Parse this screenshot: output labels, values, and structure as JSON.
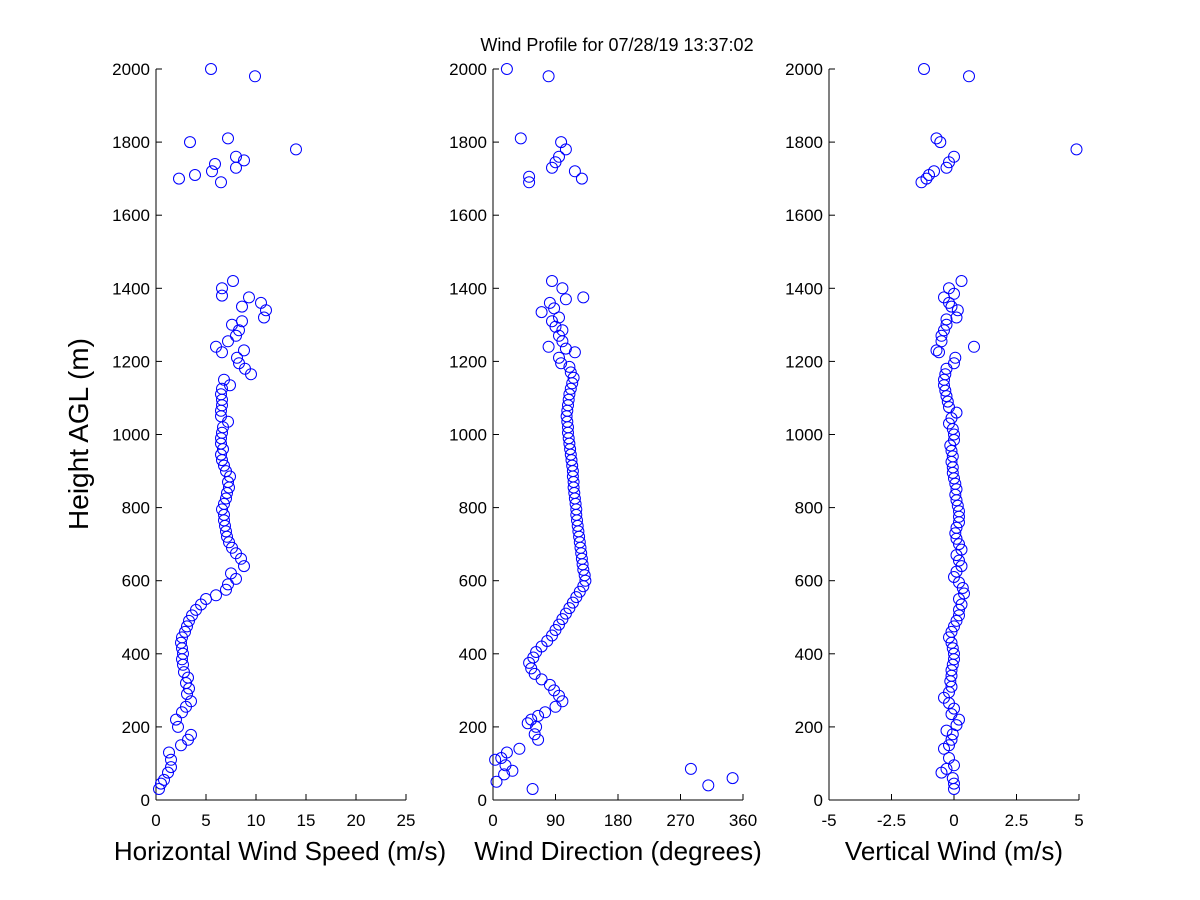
{
  "title": "Wind Profile for  07/28/19 13:37:02",
  "colors": {
    "marker": "#0000ff",
    "axis": "#000000",
    "background": "#ffffff"
  },
  "chart_data": [
    {
      "type": "scatter",
      "xlabel": "Horizontal Wind Speed (m/s)",
      "ylabel": "Height AGL (m)",
      "xlim": [
        0,
        25
      ],
      "ylim": [
        0,
        2000
      ],
      "xticks": [
        "0",
        "5",
        "10",
        "15",
        "20",
        "25"
      ],
      "yticks": [
        "0",
        "200",
        "400",
        "600",
        "800",
        "1000",
        "1200",
        "1400",
        "1600",
        "1800",
        "2000"
      ],
      "points": [
        [
          0.3,
          30
        ],
        [
          0.5,
          45
        ],
        [
          0.8,
          55
        ],
        [
          1.2,
          75
        ],
        [
          1.5,
          90
        ],
        [
          1.5,
          110
        ],
        [
          1.3,
          130
        ],
        [
          2.5,
          150
        ],
        [
          3.2,
          165
        ],
        [
          3.5,
          178
        ],
        [
          2.2,
          200
        ],
        [
          2.0,
          220
        ],
        [
          2.6,
          240
        ],
        [
          3.0,
          255
        ],
        [
          3.5,
          270
        ],
        [
          3.1,
          290
        ],
        [
          3.3,
          305
        ],
        [
          3.0,
          320
        ],
        [
          3.2,
          335
        ],
        [
          2.8,
          350
        ],
        [
          2.7,
          370
        ],
        [
          2.6,
          385
        ],
        [
          2.7,
          400
        ],
        [
          2.6,
          415
        ],
        [
          2.5,
          430
        ],
        [
          2.6,
          445
        ],
        [
          2.9,
          460
        ],
        [
          3.1,
          475
        ],
        [
          3.3,
          490
        ],
        [
          3.6,
          505
        ],
        [
          4.0,
          520
        ],
        [
          4.5,
          535
        ],
        [
          5.0,
          550
        ],
        [
          6.0,
          560
        ],
        [
          7.0,
          575
        ],
        [
          7.2,
          590
        ],
        [
          8.0,
          605
        ],
        [
          7.5,
          620
        ],
        [
          8.8,
          640
        ],
        [
          8.5,
          660
        ],
        [
          8.0,
          675
        ],
        [
          7.6,
          690
        ],
        [
          7.3,
          705
        ],
        [
          7.1,
          720
        ],
        [
          7.0,
          735
        ],
        [
          6.9,
          750
        ],
        [
          6.8,
          765
        ],
        [
          6.8,
          780
        ],
        [
          6.6,
          795
        ],
        [
          6.8,
          810
        ],
        [
          7.0,
          825
        ],
        [
          7.1,
          840
        ],
        [
          7.3,
          855
        ],
        [
          7.2,
          870
        ],
        [
          7.4,
          885
        ],
        [
          7.0,
          900
        ],
        [
          6.8,
          915
        ],
        [
          6.6,
          930
        ],
        [
          6.5,
          945
        ],
        [
          6.7,
          960
        ],
        [
          6.5,
          975
        ],
        [
          6.5,
          990
        ],
        [
          6.6,
          1005
        ],
        [
          6.7,
          1020
        ],
        [
          7.2,
          1035
        ],
        [
          6.5,
          1050
        ],
        [
          6.5,
          1065
        ],
        [
          6.6,
          1080
        ],
        [
          6.6,
          1095
        ],
        [
          6.5,
          1110
        ],
        [
          6.6,
          1125
        ],
        [
          7.4,
          1135
        ],
        [
          6.8,
          1150
        ],
        [
          9.5,
          1165
        ],
        [
          8.9,
          1180
        ],
        [
          8.3,
          1195
        ],
        [
          8.1,
          1210
        ],
        [
          8.8,
          1230
        ],
        [
          6.0,
          1240
        ],
        [
          6.6,
          1225
        ],
        [
          7.2,
          1255
        ],
        [
          8.0,
          1270
        ],
        [
          8.3,
          1285
        ],
        [
          7.6,
          1300
        ],
        [
          8.6,
          1310
        ],
        [
          10.8,
          1320
        ],
        [
          11.0,
          1340
        ],
        [
          8.6,
          1350
        ],
        [
          10.5,
          1360
        ],
        [
          6.6,
          1380
        ],
        [
          9.3,
          1375
        ],
        [
          6.6,
          1400
        ],
        [
          7.7,
          1420
        ],
        [
          2.3,
          1700
        ],
        [
          3.9,
          1710
        ],
        [
          5.6,
          1720
        ],
        [
          6.5,
          1690
        ],
        [
          5.9,
          1740
        ],
        [
          8.0,
          1730
        ],
        [
          8.8,
          1750
        ],
        [
          8.0,
          1760
        ],
        [
          3.4,
          1800
        ],
        [
          7.2,
          1810
        ],
        [
          14.0,
          1780
        ],
        [
          9.9,
          1980
        ],
        [
          5.5,
          2000
        ]
      ]
    },
    {
      "type": "scatter",
      "xlabel": "Wind Direction (degrees)",
      "ylabel": "",
      "xlim": [
        0,
        360
      ],
      "ylim": [
        0,
        2000
      ],
      "xticks": [
        "0",
        "90",
        "180",
        "270",
        "360"
      ],
      "yticks": [
        "0",
        "200",
        "400",
        "600",
        "800",
        "1000",
        "1200",
        "1400",
        "1600",
        "1800",
        "2000"
      ],
      "points": [
        [
          5,
          50
        ],
        [
          3,
          110
        ],
        [
          12,
          115
        ],
        [
          16,
          70
        ],
        [
          20,
          130
        ],
        [
          28,
          80
        ],
        [
          18,
          95
        ],
        [
          38,
          140
        ],
        [
          285,
          85
        ],
        [
          345,
          60
        ],
        [
          310,
          40
        ],
        [
          57,
          30
        ],
        [
          65,
          165
        ],
        [
          60,
          180
        ],
        [
          62,
          200
        ],
        [
          50,
          210
        ],
        [
          55,
          220
        ],
        [
          65,
          230
        ],
        [
          75,
          240
        ],
        [
          90,
          255
        ],
        [
          100,
          270
        ],
        [
          95,
          285
        ],
        [
          88,
          300
        ],
        [
          82,
          315
        ],
        [
          70,
          330
        ],
        [
          60,
          345
        ],
        [
          55,
          360
        ],
        [
          52,
          375
        ],
        [
          58,
          390
        ],
        [
          62,
          405
        ],
        [
          70,
          420
        ],
        [
          78,
          435
        ],
        [
          85,
          450
        ],
        [
          90,
          465
        ],
        [
          95,
          480
        ],
        [
          100,
          495
        ],
        [
          105,
          510
        ],
        [
          110,
          525
        ],
        [
          115,
          540
        ],
        [
          120,
          555
        ],
        [
          125,
          570
        ],
        [
          130,
          585
        ],
        [
          133,
          600
        ],
        [
          132,
          615
        ],
        [
          130,
          630
        ],
        [
          129,
          645
        ],
        [
          128,
          660
        ],
        [
          127,
          675
        ],
        [
          126,
          690
        ],
        [
          125,
          705
        ],
        [
          124,
          720
        ],
        [
          123,
          735
        ],
        [
          122,
          750
        ],
        [
          121,
          765
        ],
        [
          120,
          780
        ],
        [
          120,
          795
        ],
        [
          119,
          810
        ],
        [
          118,
          825
        ],
        [
          117,
          840
        ],
        [
          116,
          855
        ],
        [
          116,
          870
        ],
        [
          115,
          885
        ],
        [
          115,
          900
        ],
        [
          114,
          915
        ],
        [
          113,
          930
        ],
        [
          112,
          945
        ],
        [
          111,
          960
        ],
        [
          110,
          975
        ],
        [
          109,
          990
        ],
        [
          108,
          1005
        ],
        [
          108,
          1020
        ],
        [
          107,
          1035
        ],
        [
          106,
          1050
        ],
        [
          107,
          1065
        ],
        [
          108,
          1080
        ],
        [
          109,
          1095
        ],
        [
          110,
          1110
        ],
        [
          112,
          1125
        ],
        [
          114,
          1140
        ],
        [
          116,
          1155
        ],
        [
          112,
          1170
        ],
        [
          110,
          1185
        ],
        [
          98,
          1195
        ],
        [
          95,
          1210
        ],
        [
          118,
          1225
        ],
        [
          105,
          1235
        ],
        [
          80,
          1240
        ],
        [
          100,
          1255
        ],
        [
          95,
          1270
        ],
        [
          100,
          1285
        ],
        [
          90,
          1295
        ],
        [
          85,
          1310
        ],
        [
          95,
          1320
        ],
        [
          70,
          1335
        ],
        [
          88,
          1345
        ],
        [
          82,
          1360
        ],
        [
          105,
          1370
        ],
        [
          130,
          1375
        ],
        [
          100,
          1400
        ],
        [
          85,
          1420
        ],
        [
          52,
          1690
        ],
        [
          52,
          1705
        ],
        [
          128,
          1700
        ],
        [
          118,
          1720
        ],
        [
          85,
          1730
        ],
        [
          90,
          1745
        ],
        [
          95,
          1760
        ],
        [
          105,
          1780
        ],
        [
          98,
          1800
        ],
        [
          40,
          1810
        ],
        [
          80,
          1980
        ],
        [
          20,
          2000
        ]
      ]
    },
    {
      "type": "scatter",
      "xlabel": "Vertical Wind (m/s)",
      "ylabel": "",
      "xlim": [
        -5,
        5
      ],
      "ylim": [
        0,
        2000
      ],
      "xticks": [
        "-5",
        "-2.5",
        "0",
        "2.5",
        "5"
      ],
      "yticks": [
        "0",
        "200",
        "400",
        "600",
        "800",
        "1000",
        "1200",
        "1400",
        "1600",
        "1800",
        "2000"
      ],
      "points": [
        [
          0.0,
          30
        ],
        [
          0.0,
          45
        ],
        [
          -0.05,
          60
        ],
        [
          -0.5,
          75
        ],
        [
          -0.3,
          85
        ],
        [
          0.0,
          95
        ],
        [
          -0.2,
          115
        ],
        [
          -0.4,
          140
        ],
        [
          -0.2,
          150
        ],
        [
          -0.1,
          165
        ],
        [
          -0.05,
          180
        ],
        [
          -0.3,
          190
        ],
        [
          0.1,
          205
        ],
        [
          0.2,
          220
        ],
        [
          -0.1,
          235
        ],
        [
          0.0,
          250
        ],
        [
          -0.2,
          265
        ],
        [
          -0.4,
          280
        ],
        [
          -0.2,
          295
        ],
        [
          -0.1,
          310
        ],
        [
          -0.15,
          325
        ],
        [
          -0.1,
          340
        ],
        [
          -0.1,
          355
        ],
        [
          -0.05,
          370
        ],
        [
          0.0,
          385
        ],
        [
          0.0,
          400
        ],
        [
          -0.05,
          415
        ],
        [
          -0.1,
          430
        ],
        [
          -0.2,
          445
        ],
        [
          -0.1,
          460
        ],
        [
          0.0,
          475
        ],
        [
          0.1,
          490
        ],
        [
          0.2,
          505
        ],
        [
          0.2,
          520
        ],
        [
          0.3,
          535
        ],
        [
          0.2,
          550
        ],
        [
          0.4,
          565
        ],
        [
          0.35,
          580
        ],
        [
          0.2,
          595
        ],
        [
          0.0,
          610
        ],
        [
          0.1,
          625
        ],
        [
          0.3,
          640
        ],
        [
          0.2,
          655
        ],
        [
          0.1,
          670
        ],
        [
          0.3,
          685
        ],
        [
          0.2,
          700
        ],
        [
          0.1,
          715
        ],
        [
          0.05,
          730
        ],
        [
          0.1,
          745
        ],
        [
          0.2,
          760
        ],
        [
          0.2,
          775
        ],
        [
          0.2,
          790
        ],
        [
          0.15,
          805
        ],
        [
          0.1,
          820
        ],
        [
          0.05,
          835
        ],
        [
          0.1,
          850
        ],
        [
          0.05,
          865
        ],
        [
          0.0,
          880
        ],
        [
          -0.05,
          895
        ],
        [
          -0.05,
          910
        ],
        [
          -0.1,
          925
        ],
        [
          -0.05,
          940
        ],
        [
          -0.1,
          955
        ],
        [
          -0.15,
          970
        ],
        [
          0.0,
          985
        ],
        [
          0.0,
          1000
        ],
        [
          -0.05,
          1015
        ],
        [
          -0.2,
          1030
        ],
        [
          -0.1,
          1045
        ],
        [
          0.1,
          1060
        ],
        [
          -0.2,
          1075
        ],
        [
          -0.25,
          1090
        ],
        [
          -0.3,
          1105
        ],
        [
          -0.35,
          1120
        ],
        [
          -0.4,
          1135
        ],
        [
          -0.4,
          1150
        ],
        [
          -0.35,
          1165
        ],
        [
          -0.3,
          1180
        ],
        [
          0.0,
          1195
        ],
        [
          0.05,
          1210
        ],
        [
          -0.6,
          1225
        ],
        [
          -0.7,
          1230
        ],
        [
          0.8,
          1240
        ],
        [
          -0.5,
          1255
        ],
        [
          -0.5,
          1270
        ],
        [
          -0.4,
          1285
        ],
        [
          -0.3,
          1300
        ],
        [
          -0.3,
          1315
        ],
        [
          0.1,
          1320
        ],
        [
          0.15,
          1340
        ],
        [
          -0.1,
          1350
        ],
        [
          -0.2,
          1360
        ],
        [
          -0.4,
          1375
        ],
        [
          0.0,
          1385
        ],
        [
          -0.2,
          1400
        ],
        [
          0.3,
          1420
        ],
        [
          -1.3,
          1690
        ],
        [
          -1.1,
          1700
        ],
        [
          -1.0,
          1710
        ],
        [
          -0.8,
          1720
        ],
        [
          -0.3,
          1730
        ],
        [
          -0.2,
          1745
        ],
        [
          0.0,
          1760
        ],
        [
          -0.7,
          1810
        ],
        [
          -0.55,
          1800
        ],
        [
          4.9,
          1780
        ],
        [
          0.6,
          1980
        ],
        [
          -1.2,
          2000
        ]
      ]
    }
  ]
}
